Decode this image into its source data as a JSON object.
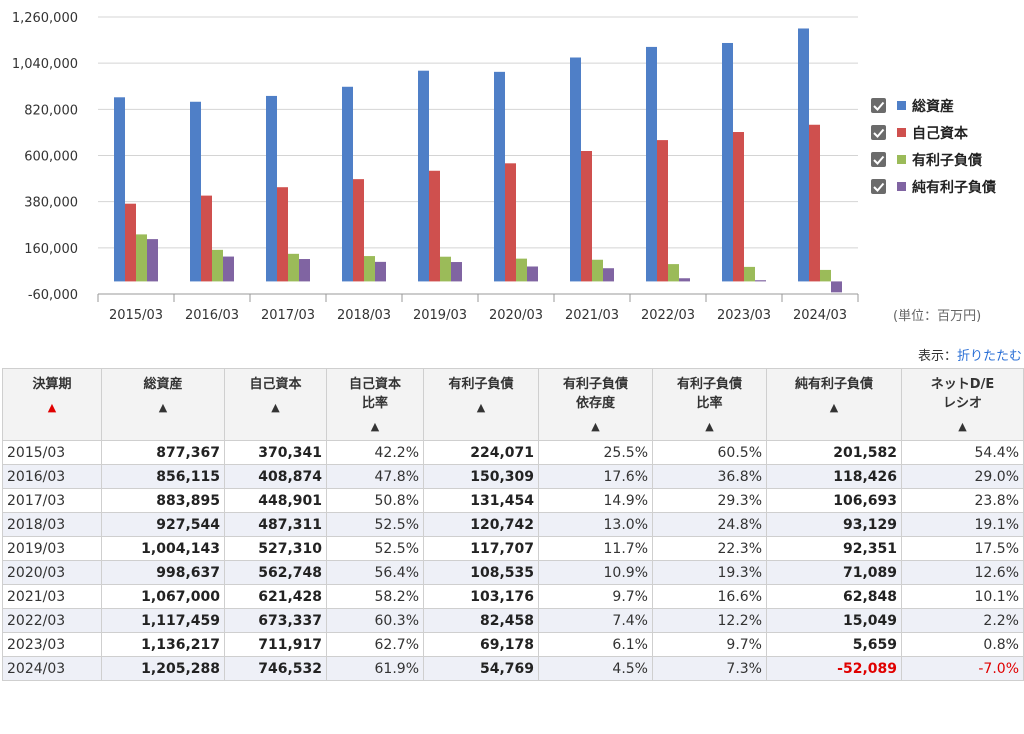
{
  "chart_data": {
    "type": "bar",
    "categories": [
      "2015/03",
      "2016/03",
      "2017/03",
      "2018/03",
      "2019/03",
      "2020/03",
      "2021/03",
      "2022/03",
      "2023/03",
      "2024/03"
    ],
    "series": [
      {
        "name": "総資産",
        "color": "#4f7fc7",
        "values": [
          877367,
          856115,
          883895,
          927544,
          1004143,
          998637,
          1067000,
          1117459,
          1136217,
          1205288
        ]
      },
      {
        "name": "自己資本",
        "color": "#cf504e",
        "values": [
          370341,
          408874,
          448901,
          487311,
          527310,
          562748,
          621428,
          673337,
          711917,
          746532
        ]
      },
      {
        "name": "有利子負債",
        "color": "#9bbb59",
        "values": [
          224071,
          150309,
          131454,
          120742,
          117707,
          108535,
          103176,
          82458,
          69178,
          54769
        ]
      },
      {
        "name": "純有利子負債",
        "color": "#8064a2",
        "values": [
          201582,
          118426,
          106693,
          93129,
          92351,
          71089,
          62848,
          15049,
          5659,
          -52089
        ]
      }
    ],
    "ylim": [
      -60000,
      1260000
    ],
    "yticks": [
      "1,260,000",
      "1,040,000",
      "820,000",
      "600,000",
      "380,000",
      "160,000",
      "-60,000"
    ],
    "ytick_values": [
      1260000,
      1040000,
      820000,
      600000,
      380000,
      160000,
      -60000
    ],
    "grid": true,
    "legend_position": "right"
  },
  "unit_note": "(単位：百万円)",
  "display_toggle": {
    "label": "表示：",
    "link": "折りたたむ"
  },
  "table": {
    "headers": [
      {
        "lines": [
          "決算期"
        ],
        "sort": "▲",
        "active": true
      },
      {
        "lines": [
          "総資産"
        ],
        "sort": "▲"
      },
      {
        "lines": [
          "自己資本"
        ],
        "sort": "▲"
      },
      {
        "lines": [
          "自己資本",
          "比率"
        ],
        "sort": "▲"
      },
      {
        "lines": [
          "有利子負債"
        ],
        "sort": "▲"
      },
      {
        "lines": [
          "有利子負債",
          "依存度"
        ],
        "sort": "▲"
      },
      {
        "lines": [
          "有利子負債",
          "比率"
        ],
        "sort": "▲"
      },
      {
        "lines": [
          "純有利子負債"
        ],
        "sort": "▲"
      },
      {
        "lines": [
          "ネットD/E",
          "レシオ"
        ],
        "sort": "▲"
      }
    ],
    "rows": [
      [
        "2015/03",
        "877,367",
        "370,341",
        "42.2%",
        "224,071",
        "25.5%",
        "60.5%",
        "201,582",
        "54.4%"
      ],
      [
        "2016/03",
        "856,115",
        "408,874",
        "47.8%",
        "150,309",
        "17.6%",
        "36.8%",
        "118,426",
        "29.0%"
      ],
      [
        "2017/03",
        "883,895",
        "448,901",
        "50.8%",
        "131,454",
        "14.9%",
        "29.3%",
        "106,693",
        "23.8%"
      ],
      [
        "2018/03",
        "927,544",
        "487,311",
        "52.5%",
        "120,742",
        "13.0%",
        "24.8%",
        "93,129",
        "19.1%"
      ],
      [
        "2019/03",
        "1,004,143",
        "527,310",
        "52.5%",
        "117,707",
        "11.7%",
        "22.3%",
        "92,351",
        "17.5%"
      ],
      [
        "2020/03",
        "998,637",
        "562,748",
        "56.4%",
        "108,535",
        "10.9%",
        "19.3%",
        "71,089",
        "12.6%"
      ],
      [
        "2021/03",
        "1,067,000",
        "621,428",
        "58.2%",
        "103,176",
        "9.7%",
        "16.6%",
        "62,848",
        "10.1%"
      ],
      [
        "2022/03",
        "1,117,459",
        "673,337",
        "60.3%",
        "82,458",
        "7.4%",
        "12.2%",
        "15,049",
        "2.2%"
      ],
      [
        "2023/03",
        "1,136,217",
        "711,917",
        "62.7%",
        "69,178",
        "6.1%",
        "9.7%",
        "5,659",
        "0.8%"
      ],
      [
        "2024/03",
        "1,205,288",
        "746,532",
        "61.9%",
        "54,769",
        "4.5%",
        "7.3%",
        "-52,089",
        "-7.0%"
      ]
    ]
  }
}
